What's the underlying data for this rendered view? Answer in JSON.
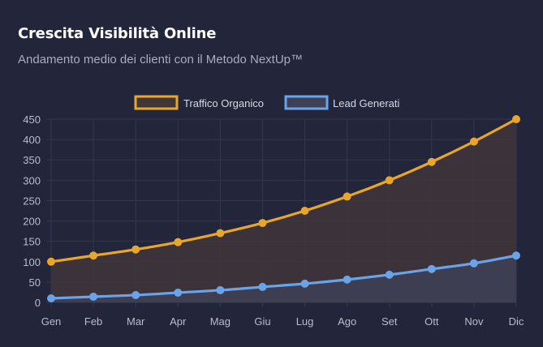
{
  "header": {
    "title": "Crescita Visibilità Online",
    "subtitle": "Andamento medio dei clienti con il Metodo NextUp™"
  },
  "colors": {
    "background": "#23253b",
    "grid": "#34374f",
    "organic": "#e8a62b",
    "organic_fill": "#3f3639",
    "leads": "#6aa3e8",
    "leads_fill": "#3e4156"
  },
  "chart_data": {
    "type": "line",
    "categories": [
      "Gen",
      "Feb",
      "Mar",
      "Apr",
      "Mag",
      "Giu",
      "Lug",
      "Ago",
      "Set",
      "Ott",
      "Nov",
      "Dic"
    ],
    "series": [
      {
        "name": "Traffico Organico",
        "values": [
          100,
          115,
          130,
          148,
          170,
          195,
          225,
          260,
          300,
          345,
          395,
          450
        ]
      },
      {
        "name": "Lead Generati",
        "values": [
          10,
          14,
          18,
          24,
          30,
          38,
          46,
          56,
          68,
          82,
          96,
          115
        ]
      }
    ],
    "ylim": [
      0,
      450
    ],
    "yticks": [
      "0",
      "50",
      "100",
      "150",
      "200",
      "250",
      "300",
      "350",
      "400",
      "450"
    ],
    "fill": true,
    "grid": true,
    "legend": "top-center"
  }
}
